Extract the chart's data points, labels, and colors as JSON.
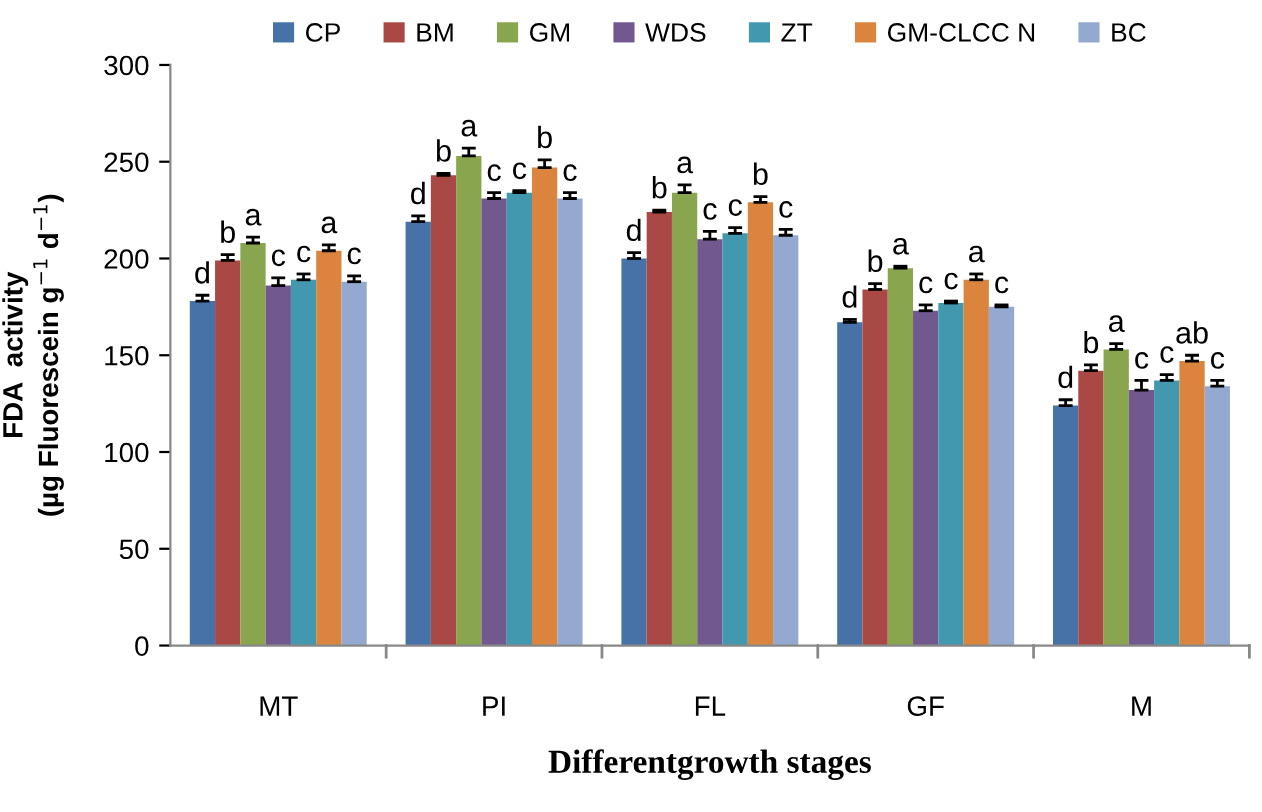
{
  "chart_data": {
    "type": "bar",
    "xlabel": "Differentgrowth stages",
    "ylabel": "FDA  activity\n(µg Fluorescein g$^{−1}$ d$^{−1}$)",
    "categories": [
      "MT",
      "PI",
      "FL",
      "GF",
      "M"
    ],
    "series": [
      {
        "name": "CP",
        "color": "#4672a8",
        "values": [
          178,
          219,
          200,
          167,
          124
        ],
        "errors": [
          3,
          3,
          3,
          1.5,
          3
        ]
      },
      {
        "name": "BM",
        "color": "#a94845",
        "values": [
          199,
          243,
          224,
          184,
          142
        ],
        "errors": [
          3,
          1,
          1,
          3,
          3
        ]
      },
      {
        "name": "GM",
        "color": "#89a54e",
        "values": [
          208,
          253,
          234,
          195,
          153
        ],
        "errors": [
          3,
          4,
          4,
          1,
          3
        ]
      },
      {
        "name": "WDS",
        "color": "#71588f",
        "values": [
          186,
          231,
          210,
          173,
          132
        ],
        "errors": [
          4,
          3,
          4,
          3,
          5
        ]
      },
      {
        "name": "ZT",
        "color": "#4298af",
        "values": [
          189,
          234,
          213,
          177,
          137
        ],
        "errors": [
          3,
          1,
          3,
          1,
          3
        ]
      },
      {
        "name": "GM-CLCC N",
        "color": "#db843d",
        "values": [
          204,
          247,
          229,
          189,
          147
        ],
        "errors": [
          3,
          4,
          3,
          3,
          3
        ]
      },
      {
        "name": "BC",
        "color": "#93a9cf",
        "values": [
          188,
          231,
          212,
          175,
          134
        ],
        "errors": [
          3,
          3,
          3,
          1,
          3
        ]
      }
    ],
    "annotations": [
      "d",
      "b",
      "a",
      "c",
      "c",
      "a",
      "c",
      "d",
      "b",
      "a",
      "c",
      "c",
      "b",
      "c",
      "d",
      "b",
      "a",
      "c",
      "c",
      "b",
      "c",
      "d",
      "b",
      "a",
      "c",
      "c",
      "a",
      "c",
      "d",
      "b",
      "a",
      "c",
      "c",
      "ab",
      "c"
    ],
    "ylim": [
      0,
      300
    ],
    "yticks": [
      0,
      50,
      100,
      150,
      200,
      250,
      300
    ],
    "grid": false,
    "legend": "top"
  }
}
